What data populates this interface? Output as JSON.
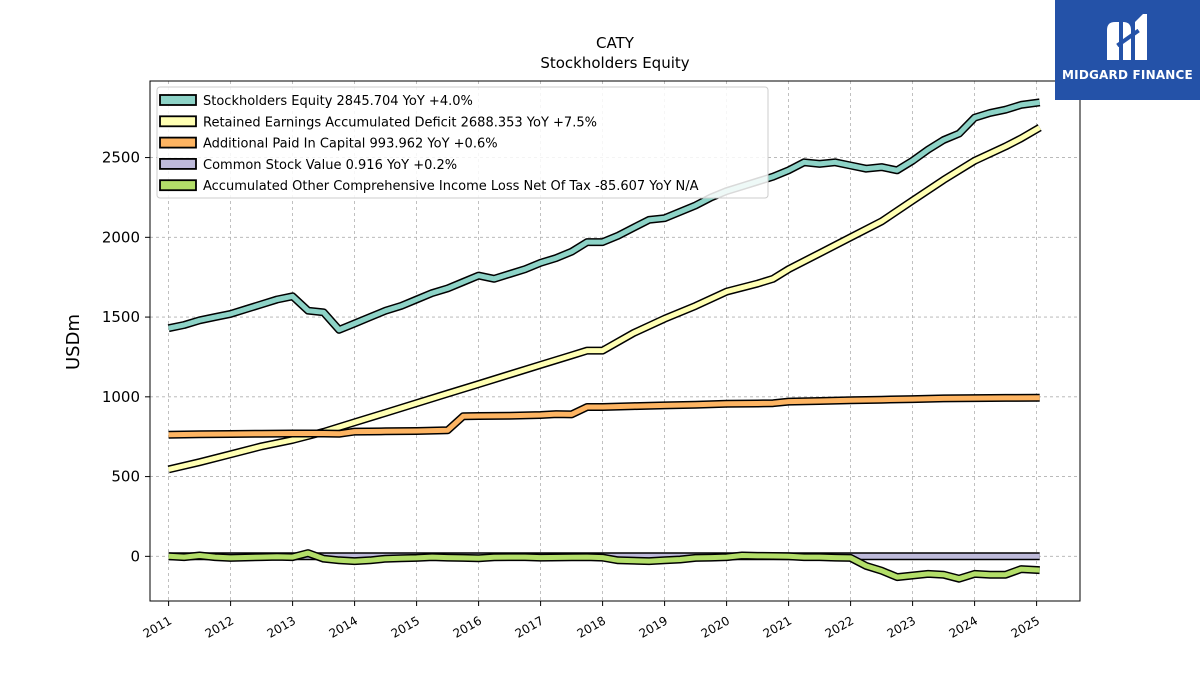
{
  "chart_data": {
    "type": "line",
    "title": "CATY",
    "subtitle": "Stockholders  Equity",
    "ylabel": "USDm",
    "xlabel": "",
    "xlim": [
      2010.7,
      2025.7
    ],
    "ylim": [
      -280,
      2980
    ],
    "yticks": [
      0,
      500,
      1000,
      1500,
      2000,
      2500
    ],
    "xticks": [
      2011,
      2012,
      2013,
      2014,
      2015,
      2016,
      2017,
      2018,
      2019,
      2020,
      2021,
      2022,
      2023,
      2024,
      2025
    ],
    "grid": true,
    "legend": "top-left",
    "series": [
      {
        "name": "Stockholders Equity",
        "legend_label": "Stockholders Equity  2845.704 YoY +4.0%",
        "color": "#8dd3c7",
        "points": [
          [
            2011.0,
            1430
          ],
          [
            2011.25,
            1450
          ],
          [
            2011.5,
            1480
          ],
          [
            2011.75,
            1500
          ],
          [
            2012.0,
            1520
          ],
          [
            2012.25,
            1550
          ],
          [
            2012.5,
            1580
          ],
          [
            2012.75,
            1610
          ],
          [
            2013.0,
            1630
          ],
          [
            2013.25,
            1540
          ],
          [
            2013.5,
            1530
          ],
          [
            2013.75,
            1420
          ],
          [
            2014.0,
            1460
          ],
          [
            2014.25,
            1500
          ],
          [
            2014.5,
            1540
          ],
          [
            2014.75,
            1570
          ],
          [
            2015.0,
            1610
          ],
          [
            2015.25,
            1650
          ],
          [
            2015.5,
            1680
          ],
          [
            2015.75,
            1720
          ],
          [
            2016.0,
            1760
          ],
          [
            2016.25,
            1740
          ],
          [
            2016.5,
            1770
          ],
          [
            2016.75,
            1800
          ],
          [
            2017.0,
            1840
          ],
          [
            2017.25,
            1870
          ],
          [
            2017.5,
            1910
          ],
          [
            2017.75,
            1970
          ],
          [
            2018.0,
            1970
          ],
          [
            2018.25,
            2010
          ],
          [
            2018.5,
            2060
          ],
          [
            2018.75,
            2110
          ],
          [
            2019.0,
            2120
          ],
          [
            2019.25,
            2160
          ],
          [
            2019.5,
            2200
          ],
          [
            2019.75,
            2250
          ],
          [
            2020.0,
            2290
          ],
          [
            2020.25,
            2320
          ],
          [
            2020.5,
            2350
          ],
          [
            2020.75,
            2380
          ],
          [
            2021.0,
            2420
          ],
          [
            2021.25,
            2470
          ],
          [
            2021.5,
            2460
          ],
          [
            2021.75,
            2470
          ],
          [
            2022.0,
            2450
          ],
          [
            2022.25,
            2430
          ],
          [
            2022.5,
            2440
          ],
          [
            2022.75,
            2420
          ],
          [
            2023.0,
            2480
          ],
          [
            2023.25,
            2550
          ],
          [
            2023.5,
            2610
          ],
          [
            2023.75,
            2650
          ],
          [
            2024.0,
            2750
          ],
          [
            2024.25,
            2780
          ],
          [
            2024.5,
            2800
          ],
          [
            2024.75,
            2830
          ],
          [
            2025.05,
            2846
          ]
        ]
      },
      {
        "name": "Retained Earnings Accumulated Deficit",
        "legend_label": "Retained Earnings Accumulated Deficit  2688.353 YoY +7.5%",
        "color": "#ffffb3",
        "points": [
          [
            2011.0,
            545
          ],
          [
            2011.5,
            590
          ],
          [
            2012.0,
            640
          ],
          [
            2012.5,
            690
          ],
          [
            2013.0,
            730
          ],
          [
            2013.5,
            780
          ],
          [
            2014.0,
            840
          ],
          [
            2014.5,
            900
          ],
          [
            2015.0,
            960
          ],
          [
            2015.5,
            1020
          ],
          [
            2016.0,
            1080
          ],
          [
            2016.5,
            1140
          ],
          [
            2017.0,
            1200
          ],
          [
            2017.5,
            1260
          ],
          [
            2017.75,
            1290
          ],
          [
            2018.0,
            1290
          ],
          [
            2018.5,
            1400
          ],
          [
            2019.0,
            1490
          ],
          [
            2019.5,
            1570
          ],
          [
            2020.0,
            1660
          ],
          [
            2020.5,
            1710
          ],
          [
            2020.75,
            1740
          ],
          [
            2021.0,
            1800
          ],
          [
            2021.5,
            1900
          ],
          [
            2022.0,
            2000
          ],
          [
            2022.5,
            2100
          ],
          [
            2023.0,
            2230
          ],
          [
            2023.5,
            2360
          ],
          [
            2024.0,
            2480
          ],
          [
            2024.5,
            2570
          ],
          [
            2024.75,
            2620
          ],
          [
            2025.05,
            2688
          ]
        ]
      },
      {
        "name": "Additional Paid In Capital",
        "legend_label": "Additional Paid In Capital  993.962 YoY +0.6%",
        "color": "#fdb462",
        "points": [
          [
            2011.0,
            762
          ],
          [
            2011.5,
            765
          ],
          [
            2012.0,
            767
          ],
          [
            2012.5,
            769
          ],
          [
            2013.0,
            770
          ],
          [
            2013.5,
            770
          ],
          [
            2013.75,
            768
          ],
          [
            2014.0,
            782
          ],
          [
            2014.5,
            784
          ],
          [
            2015.0,
            786
          ],
          [
            2015.5,
            790
          ],
          [
            2015.75,
            878
          ],
          [
            2016.0,
            880
          ],
          [
            2016.5,
            882
          ],
          [
            2017.0,
            886
          ],
          [
            2017.25,
            892
          ],
          [
            2017.5,
            890
          ],
          [
            2017.75,
            936
          ],
          [
            2018.0,
            936
          ],
          [
            2018.5,
            942
          ],
          [
            2019.0,
            946
          ],
          [
            2019.5,
            950
          ],
          [
            2020.0,
            956
          ],
          [
            2020.5,
            958
          ],
          [
            2020.75,
            960
          ],
          [
            2021.0,
            970
          ],
          [
            2021.5,
            974
          ],
          [
            2022.0,
            978
          ],
          [
            2022.5,
            982
          ],
          [
            2023.0,
            986
          ],
          [
            2023.5,
            990
          ],
          [
            2024.0,
            992
          ],
          [
            2024.5,
            993
          ],
          [
            2025.05,
            994
          ]
        ]
      },
      {
        "name": "Common Stock Value",
        "legend_label": "Common Stock Value  0.916 YoY +0.2%",
        "color": "#bebada",
        "points": [
          [
            2011.0,
            0.9
          ],
          [
            2025.05,
            0.916
          ]
        ]
      },
      {
        "name": "Accumulated Other Comprehensive Income Loss Net Of Tax",
        "legend_label": "Accumulated Other Comprehensive Income Loss Net Of Tax  -85.607 YoY N/A",
        "color": "#b3de69",
        "points": [
          [
            2011.0,
            0
          ],
          [
            2011.25,
            -5
          ],
          [
            2011.5,
            5
          ],
          [
            2011.75,
            -5
          ],
          [
            2012.0,
            -10
          ],
          [
            2012.5,
            -5
          ],
          [
            2012.75,
            -3
          ],
          [
            2013.0,
            -5
          ],
          [
            2013.25,
            20
          ],
          [
            2013.5,
            -15
          ],
          [
            2013.75,
            -25
          ],
          [
            2014.0,
            -30
          ],
          [
            2014.25,
            -25
          ],
          [
            2014.5,
            -15
          ],
          [
            2014.75,
            -12
          ],
          [
            2015.0,
            -10
          ],
          [
            2015.25,
            -5
          ],
          [
            2015.5,
            -8
          ],
          [
            2015.75,
            -10
          ],
          [
            2016.0,
            -12
          ],
          [
            2016.25,
            -6
          ],
          [
            2016.5,
            -5
          ],
          [
            2016.75,
            -5
          ],
          [
            2017.0,
            -8
          ],
          [
            2017.5,
            -6
          ],
          [
            2017.75,
            -5
          ],
          [
            2018.0,
            -8
          ],
          [
            2018.25,
            -25
          ],
          [
            2018.75,
            -30
          ],
          [
            2019.0,
            -25
          ],
          [
            2019.25,
            -20
          ],
          [
            2019.5,
            -10
          ],
          [
            2019.75,
            -8
          ],
          [
            2020.0,
            -5
          ],
          [
            2020.25,
            5
          ],
          [
            2020.5,
            3
          ],
          [
            2020.75,
            2
          ],
          [
            2021.0,
            0
          ],
          [
            2021.25,
            -5
          ],
          [
            2021.5,
            -5
          ],
          [
            2021.75,
            -8
          ],
          [
            2022.0,
            -10
          ],
          [
            2022.25,
            -60
          ],
          [
            2022.5,
            -90
          ],
          [
            2022.75,
            -130
          ],
          [
            2023.0,
            -120
          ],
          [
            2023.25,
            -110
          ],
          [
            2023.5,
            -115
          ],
          [
            2023.75,
            -140
          ],
          [
            2024.0,
            -110
          ],
          [
            2024.25,
            -115
          ],
          [
            2024.5,
            -115
          ],
          [
            2024.75,
            -80
          ],
          [
            2025.05,
            -86
          ]
        ]
      }
    ]
  },
  "logo": {
    "text": "MIDGARD FINANCE",
    "icon": "midgard-logo-icon",
    "color": "#2452a8"
  }
}
